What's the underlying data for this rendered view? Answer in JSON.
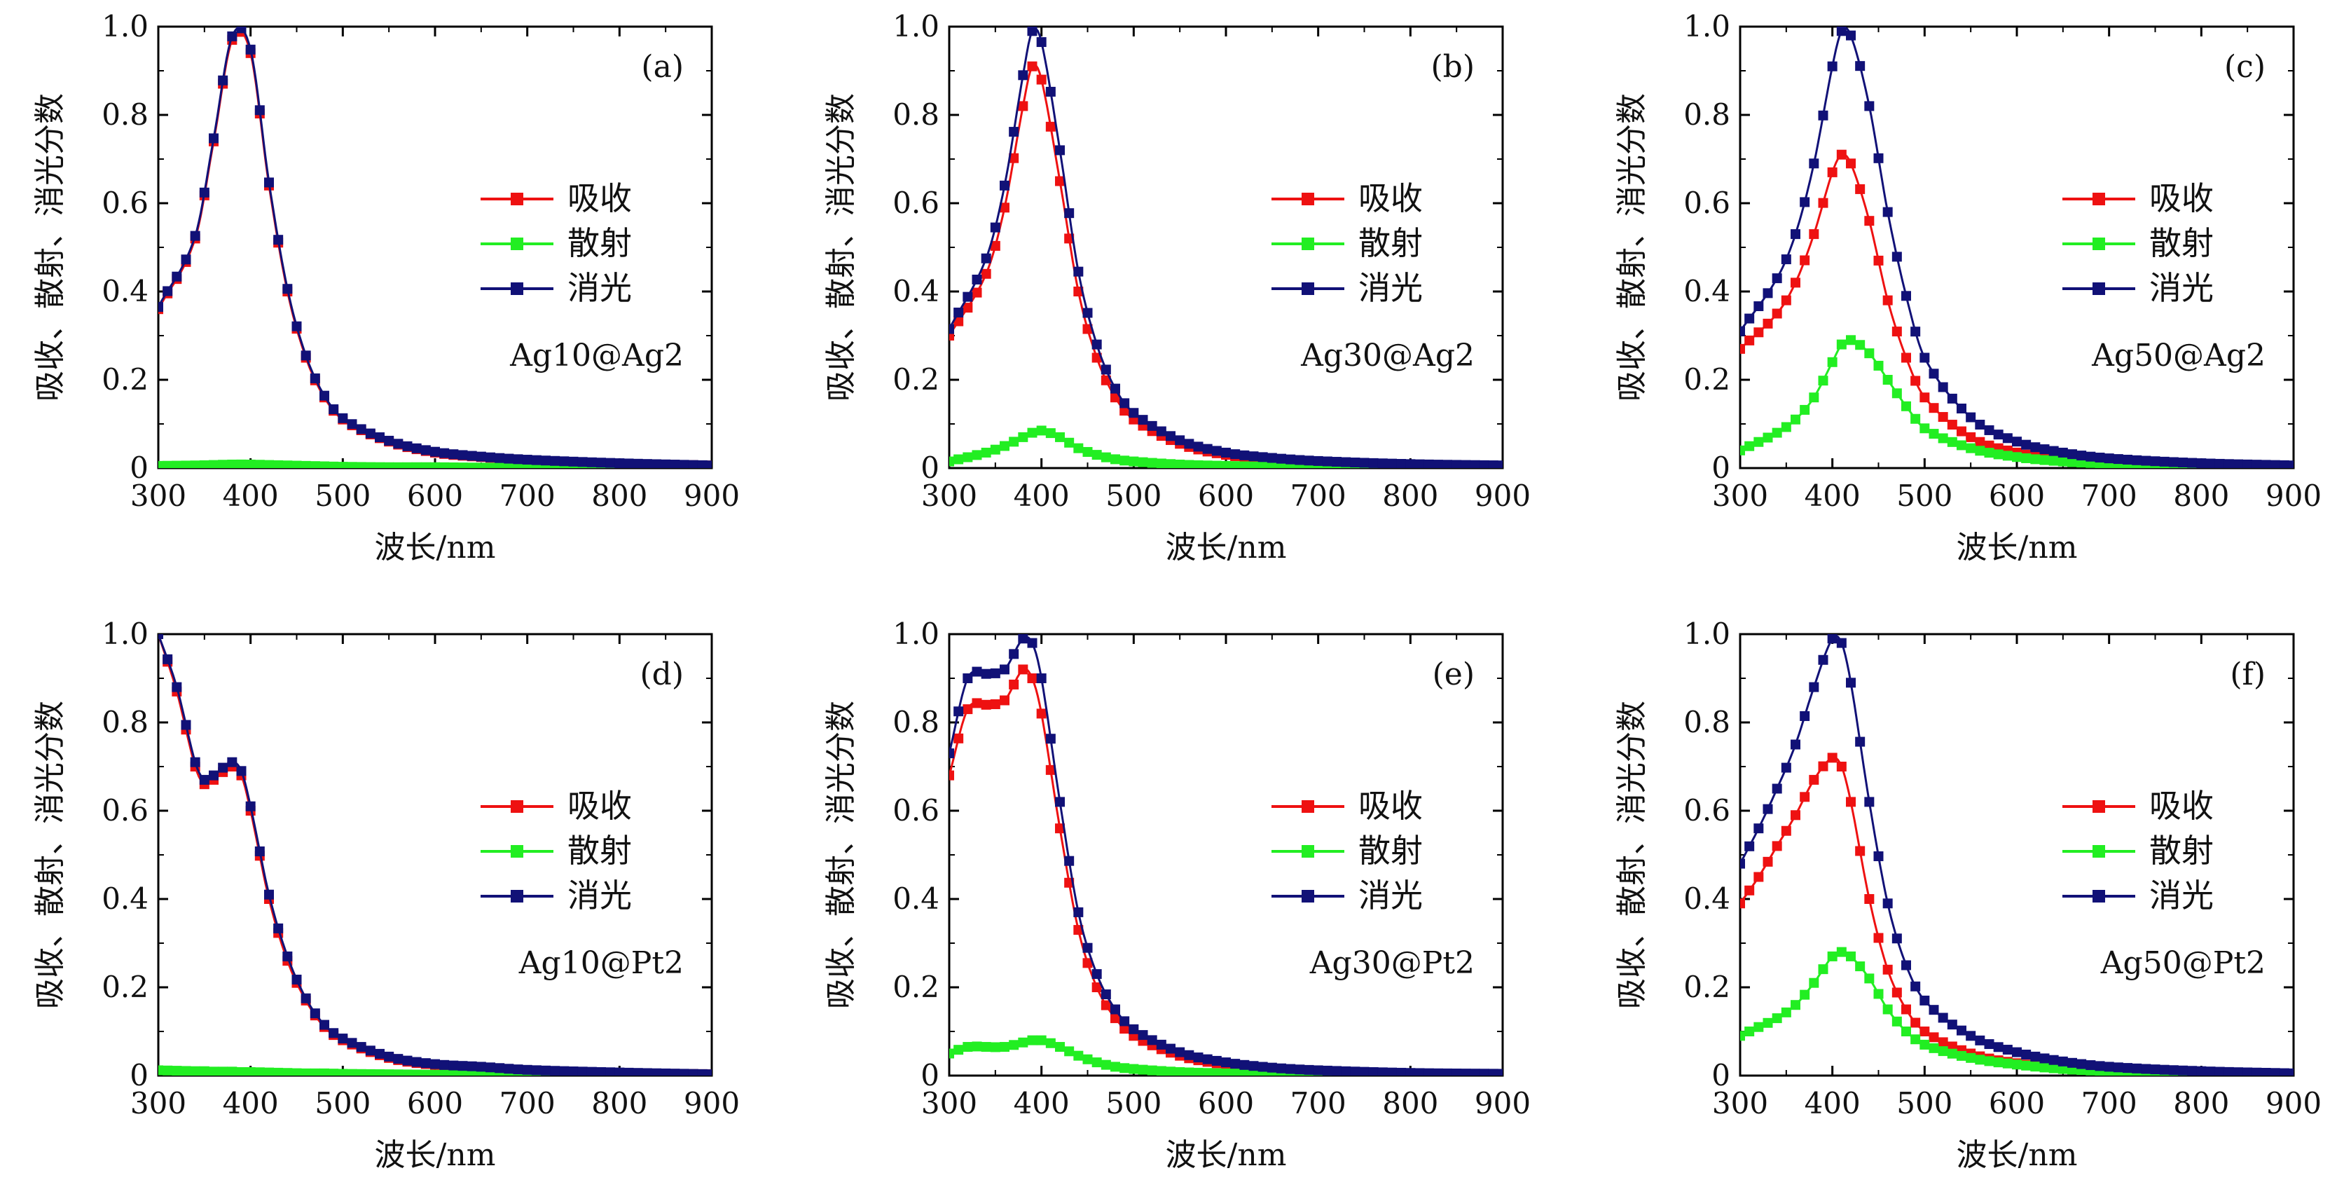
{
  "colors": {
    "absorption": "#ee1111",
    "scattering": "#22ee22",
    "extinction": "#111177",
    "axis": "#000000"
  },
  "chart_data": [
    {
      "type": "line",
      "label": "(a)",
      "sample": "Ag10@Ag2",
      "xlabel": "波长/nm",
      "ylabel": "吸收、散射、消光分数",
      "xlim": [
        300,
        900
      ],
      "ylim": [
        0,
        1.0
      ],
      "xticks": [
        "300",
        "400",
        "500",
        "600",
        "700",
        "800",
        "900"
      ],
      "yticks": [
        "0",
        "0.2",
        "0.4",
        "0.6",
        "0.8",
        "1.0"
      ],
      "legend_position": "right",
      "grid": false,
      "x": [
        300,
        340,
        360,
        380,
        400,
        420,
        440,
        460,
        480,
        500,
        550,
        600,
        650,
        700,
        800,
        900
      ],
      "series": [
        {
          "name": "吸收",
          "color_key": "absorption",
          "values": [
            0.36,
            0.52,
            0.74,
            0.97,
            0.94,
            0.64,
            0.4,
            0.25,
            0.16,
            0.11,
            0.06,
            0.035,
            0.025,
            0.018,
            0.01,
            0.006
          ]
        },
        {
          "name": "散射",
          "color_key": "scattering",
          "values": [
            0.005,
            0.006,
            0.007,
            0.008,
            0.008,
            0.007,
            0.006,
            0.005,
            0.004,
            0.003,
            0.002,
            0.002,
            0.001,
            0.001,
            0.001,
            0.0
          ]
        },
        {
          "name": "消光",
          "color_key": "extinction",
          "values": [
            0.365,
            0.526,
            0.747,
            0.978,
            0.948,
            0.647,
            0.406,
            0.255,
            0.164,
            0.113,
            0.062,
            0.037,
            0.026,
            0.019,
            0.011,
            0.006
          ]
        }
      ]
    },
    {
      "type": "line",
      "label": "(b)",
      "sample": "Ag30@Ag2",
      "xlabel": "波长/nm",
      "ylabel": "吸收、散射、消光分数",
      "xlim": [
        300,
        900
      ],
      "ylim": [
        0,
        1.0
      ],
      "xticks": [
        "300",
        "400",
        "500",
        "600",
        "700",
        "800",
        "900"
      ],
      "yticks": [
        "0",
        "0.2",
        "0.4",
        "0.6",
        "0.8",
        "1.0"
      ],
      "legend_position": "right",
      "grid": false,
      "x": [
        300,
        340,
        360,
        380,
        390,
        400,
        420,
        440,
        460,
        480,
        500,
        550,
        600,
        650,
        700,
        800,
        900
      ],
      "series": [
        {
          "name": "吸收",
          "color_key": "absorption",
          "values": [
            0.3,
            0.44,
            0.59,
            0.82,
            0.91,
            0.88,
            0.65,
            0.4,
            0.25,
            0.16,
            0.11,
            0.055,
            0.03,
            0.02,
            0.014,
            0.008,
            0.005
          ]
        },
        {
          "name": "散射",
          "color_key": "scattering",
          "values": [
            0.015,
            0.035,
            0.05,
            0.07,
            0.08,
            0.085,
            0.07,
            0.045,
            0.03,
            0.02,
            0.015,
            0.008,
            0.005,
            0.003,
            0.002,
            0.001,
            0.001
          ]
        },
        {
          "name": "消光",
          "color_key": "extinction",
          "values": [
            0.315,
            0.475,
            0.64,
            0.89,
            0.99,
            0.965,
            0.72,
            0.445,
            0.28,
            0.18,
            0.125,
            0.063,
            0.035,
            0.023,
            0.016,
            0.009,
            0.006
          ]
        }
      ]
    },
    {
      "type": "line",
      "label": "(c)",
      "sample": "Ag50@Ag2",
      "xlabel": "波长/nm",
      "ylabel": "吸收、散射、消光分数",
      "xlim": [
        300,
        900
      ],
      "ylim": [
        0,
        1.0
      ],
      "xticks": [
        "300",
        "400",
        "500",
        "600",
        "700",
        "800",
        "900"
      ],
      "yticks": [
        "0",
        "0.2",
        "0.4",
        "0.6",
        "0.8",
        "1.0"
      ],
      "legend_position": "right",
      "grid": false,
      "x": [
        300,
        340,
        360,
        380,
        400,
        410,
        420,
        440,
        460,
        480,
        500,
        550,
        600,
        650,
        700,
        800,
        900
      ],
      "series": [
        {
          "name": "吸收",
          "color_key": "absorption",
          "values": [
            0.27,
            0.35,
            0.42,
            0.53,
            0.67,
            0.71,
            0.69,
            0.56,
            0.38,
            0.25,
            0.16,
            0.07,
            0.035,
            0.02,
            0.012,
            0.006,
            0.003
          ]
        },
        {
          "name": "散射",
          "color_key": "scattering",
          "values": [
            0.04,
            0.08,
            0.11,
            0.16,
            0.24,
            0.28,
            0.29,
            0.26,
            0.2,
            0.14,
            0.09,
            0.045,
            0.025,
            0.015,
            0.01,
            0.005,
            0.003
          ]
        },
        {
          "name": "消光",
          "color_key": "extinction",
          "values": [
            0.31,
            0.43,
            0.53,
            0.69,
            0.91,
            0.99,
            0.98,
            0.82,
            0.58,
            0.39,
            0.25,
            0.115,
            0.06,
            0.035,
            0.022,
            0.011,
            0.006
          ]
        }
      ]
    },
    {
      "type": "line",
      "label": "(d)",
      "sample": "Ag10@Pt2",
      "xlabel": "波长/nm",
      "ylabel": "吸收、散射、消光分数",
      "xlim": [
        300,
        900
      ],
      "ylim": [
        0,
        1.0
      ],
      "xticks": [
        "300",
        "400",
        "500",
        "600",
        "700",
        "800",
        "900"
      ],
      "yticks": [
        "0",
        "0.2",
        "0.4",
        "0.6",
        "0.8",
        "1.0"
      ],
      "legend_position": "right",
      "grid": false,
      "x": [
        300,
        320,
        340,
        350,
        360,
        380,
        390,
        400,
        420,
        440,
        460,
        480,
        500,
        550,
        600,
        650,
        700,
        800,
        900
      ],
      "series": [
        {
          "name": "吸收",
          "color_key": "absorption",
          "values": [
            1.0,
            0.87,
            0.7,
            0.66,
            0.67,
            0.7,
            0.68,
            0.6,
            0.4,
            0.26,
            0.17,
            0.11,
            0.08,
            0.04,
            0.024,
            0.018,
            0.012,
            0.006,
            0.003
          ]
        },
        {
          "name": "散射",
          "color_key": "scattering",
          "values": [
            0.012,
            0.011,
            0.01,
            0.01,
            0.009,
            0.009,
            0.008,
            0.008,
            0.007,
            0.006,
            0.005,
            0.005,
            0.004,
            0.003,
            0.002,
            0.002,
            0.001,
            0.001,
            0.0
          ]
        },
        {
          "name": "消光",
          "color_key": "extinction",
          "values": [
            1.0,
            0.88,
            0.71,
            0.67,
            0.68,
            0.71,
            0.69,
            0.61,
            0.41,
            0.27,
            0.175,
            0.115,
            0.084,
            0.043,
            0.026,
            0.02,
            0.013,
            0.007,
            0.003
          ]
        }
      ]
    },
    {
      "type": "line",
      "label": "(e)",
      "sample": "Ag30@Pt2",
      "xlabel": "波长/nm",
      "ylabel": "吸收、散射、消光分数",
      "xlim": [
        300,
        900
      ],
      "ylim": [
        0,
        1.0
      ],
      "xticks": [
        "300",
        "400",
        "500",
        "600",
        "700",
        "800",
        "900"
      ],
      "yticks": [
        "0",
        "0.2",
        "0.4",
        "0.6",
        "0.8",
        "1.0"
      ],
      "legend_position": "right",
      "grid": false,
      "x": [
        300,
        320,
        340,
        360,
        380,
        390,
        400,
        420,
        440,
        460,
        480,
        500,
        550,
        600,
        650,
        700,
        800,
        900
      ],
      "series": [
        {
          "name": "吸收",
          "color_key": "absorption",
          "values": [
            0.68,
            0.83,
            0.84,
            0.85,
            0.92,
            0.9,
            0.82,
            0.56,
            0.33,
            0.2,
            0.13,
            0.09,
            0.045,
            0.025,
            0.015,
            0.01,
            0.005,
            0.003
          ]
        },
        {
          "name": "散射",
          "color_key": "scattering",
          "values": [
            0.05,
            0.065,
            0.065,
            0.065,
            0.075,
            0.08,
            0.08,
            0.065,
            0.045,
            0.03,
            0.02,
            0.015,
            0.008,
            0.005,
            0.003,
            0.002,
            0.001,
            0.001
          ]
        },
        {
          "name": "消光",
          "color_key": "extinction",
          "values": [
            0.73,
            0.9,
            0.91,
            0.92,
            0.99,
            0.98,
            0.9,
            0.62,
            0.37,
            0.23,
            0.15,
            0.105,
            0.053,
            0.03,
            0.018,
            0.012,
            0.006,
            0.004
          ]
        }
      ]
    },
    {
      "type": "line",
      "label": "(f)",
      "sample": "Ag50@Pt2",
      "xlabel": "波长/nm",
      "ylabel": "吸收、散射、消光分数",
      "xlim": [
        300,
        900
      ],
      "ylim": [
        0,
        1.0
      ],
      "xticks": [
        "300",
        "400",
        "500",
        "600",
        "700",
        "800",
        "900"
      ],
      "yticks": [
        "0",
        "0.2",
        "0.4",
        "0.6",
        "0.8",
        "1.0"
      ],
      "legend_position": "right",
      "grid": false,
      "x": [
        300,
        320,
        340,
        360,
        380,
        400,
        410,
        420,
        440,
        460,
        480,
        500,
        550,
        600,
        650,
        700,
        800,
        900
      ],
      "series": [
        {
          "name": "吸收",
          "color_key": "absorption",
          "values": [
            0.39,
            0.45,
            0.52,
            0.59,
            0.67,
            0.72,
            0.7,
            0.62,
            0.4,
            0.24,
            0.15,
            0.1,
            0.05,
            0.028,
            0.017,
            0.01,
            0.005,
            0.002
          ]
        },
        {
          "name": "散射",
          "color_key": "scattering",
          "values": [
            0.09,
            0.11,
            0.13,
            0.16,
            0.21,
            0.27,
            0.28,
            0.27,
            0.22,
            0.15,
            0.1,
            0.07,
            0.04,
            0.025,
            0.015,
            0.01,
            0.005,
            0.003
          ]
        },
        {
          "name": "消光",
          "color_key": "extinction",
          "values": [
            0.48,
            0.56,
            0.65,
            0.75,
            0.88,
            0.99,
            0.98,
            0.89,
            0.62,
            0.39,
            0.25,
            0.17,
            0.09,
            0.053,
            0.032,
            0.02,
            0.01,
            0.005
          ]
        }
      ]
    }
  ]
}
